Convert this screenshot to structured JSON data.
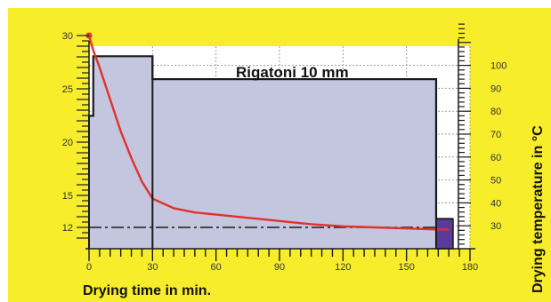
{
  "chart_data": {
    "type": "line",
    "title": "Rigatoni 10 mm",
    "xlabel": "Drying time in min.",
    "ylabel_left": "",
    "ylabel_right": "Drying temperature in °C",
    "xlim": [
      0,
      180
    ],
    "xticks": [
      "0",
      "30",
      "60",
      "90",
      "120",
      "150",
      "180"
    ],
    "xtick_values": [
      0,
      30,
      60,
      90,
      120,
      150,
      180
    ],
    "ylim_left": [
      10,
      30
    ],
    "yticks_left": [
      "30",
      "25",
      "20",
      "15",
      "12"
    ],
    "ytick_values_left": [
      30,
      25,
      20,
      15,
      12
    ],
    "ylim_right": [
      20,
      120
    ],
    "yticks_right": [
      "100",
      "90",
      "80",
      "70",
      "60",
      "50",
      "40",
      "30"
    ],
    "ytick_values_right": [
      100,
      90,
      80,
      70,
      60,
      50,
      40,
      30
    ],
    "grid": true,
    "series": [
      {
        "kind": "moisture-curve",
        "color": "#e0322c",
        "axis": "left",
        "x": [
          0,
          2,
          5,
          10,
          15,
          20,
          25,
          30,
          40,
          50,
          60,
          75,
          90,
          105,
          120,
          135,
          150,
          165,
          170
        ],
        "y": [
          30,
          28.6,
          27,
          24,
          21,
          18.5,
          16.3,
          14.7,
          13.8,
          13.4,
          13.2,
          12.9,
          12.6,
          12.3,
          12.1,
          12.0,
          11.9,
          11.8,
          11.8
        ]
      },
      {
        "kind": "temperature-profile",
        "color": "#1a1a1a",
        "fill": "#c4c6df",
        "axis": "right",
        "x": [
          0,
          2,
          2,
          30,
          30,
          164,
          164,
          172
        ],
        "y": [
          78,
          78,
          104,
          104,
          94,
          94,
          33,
          33
        ]
      },
      {
        "kind": "reference-line",
        "style": "dash-dot",
        "color": "#1a1a1a",
        "axis": "left",
        "x": [
          0,
          170
        ],
        "y": [
          12,
          12
        ]
      }
    ],
    "colors": {
      "background": "#f7ed2a",
      "plot_area": "#ffffff",
      "grid": "#9a9a9a"
    }
  }
}
